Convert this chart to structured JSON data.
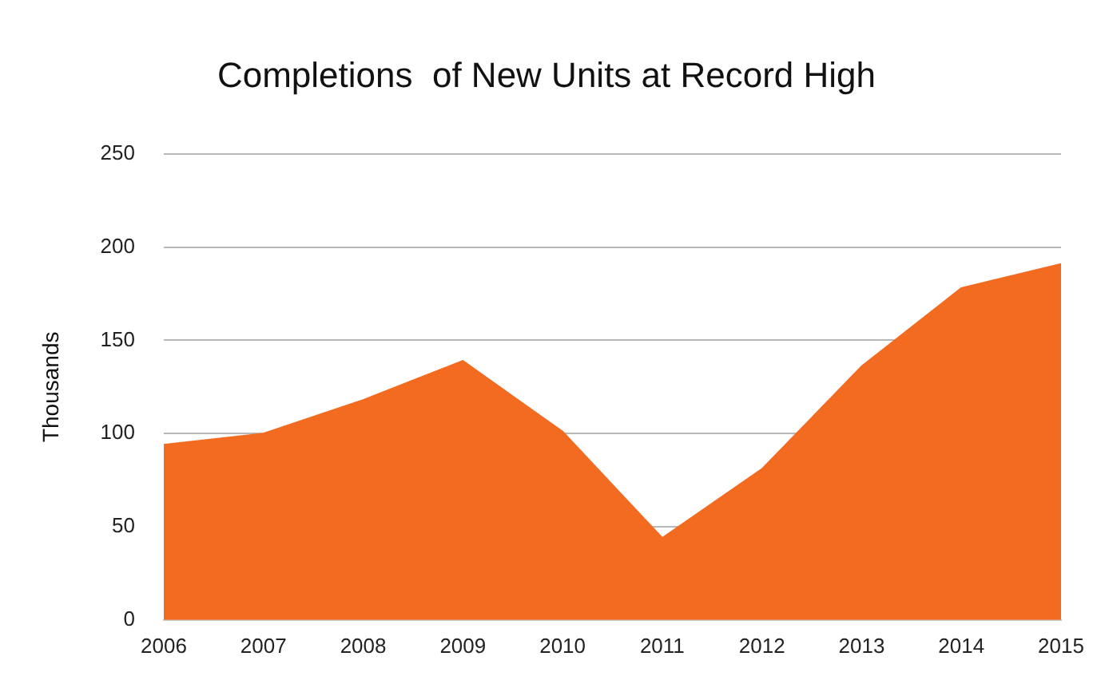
{
  "chart_data": {
    "type": "area",
    "title": "Completions  of New Units at Record High",
    "ylabel": "Thousands",
    "categories": [
      "2006",
      "2007",
      "2008",
      "2009",
      "2010",
      "2011",
      "2012",
      "2013",
      "2014",
      "2015"
    ],
    "series": [
      {
        "color": "#f26b21",
        "values": [
          94,
          100,
          118,
          139,
          101,
          44,
          81,
          136,
          178,
          191
        ]
      }
    ],
    "ylim": [
      0,
      250
    ],
    "yticks": [
      0,
      50,
      100,
      150,
      200,
      250
    ],
    "grid": "y",
    "legend": false
  }
}
